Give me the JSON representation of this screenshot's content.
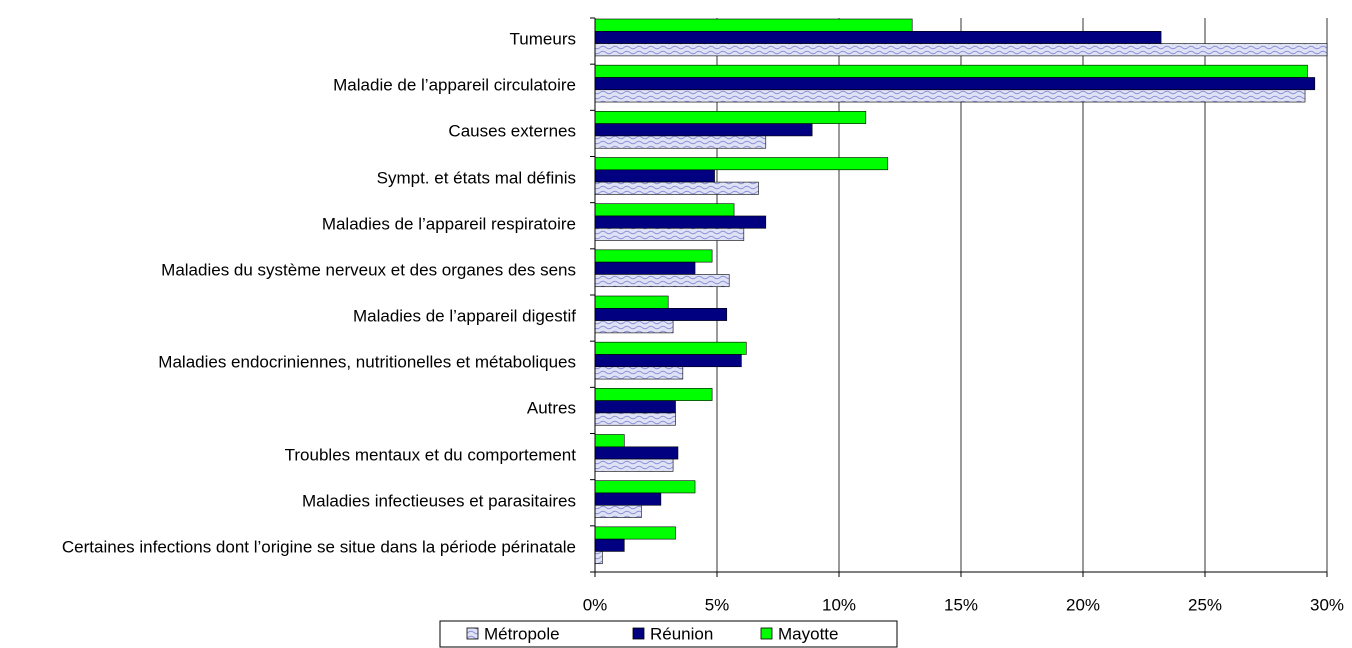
{
  "chart_data": {
    "type": "bar",
    "orientation": "horizontal",
    "categories": [
      "Tumeurs",
      "Maladie de l’appareil circulatoire",
      "Causes externes",
      "Sympt. et états mal définis",
      "Maladies de l’appareil respiratoire",
      "Maladies du système nerveux et des organes des sens",
      "Maladies de l’appareil digestif",
      "Maladies endocriniennes, nutritionelles et métaboliques",
      "Autres",
      "Troubles mentaux et du comportement",
      "Maladies infectieuses et parasitaires",
      "Certaines infections dont l’origine se situe dans la période périnatale"
    ],
    "series": [
      {
        "name": "Métropole",
        "color": "#dfe1f5",
        "pattern": "wave",
        "values": [
          30.0,
          29.1,
          7.0,
          6.7,
          6.1,
          5.5,
          3.2,
          3.6,
          3.3,
          3.2,
          1.9,
          0.3
        ]
      },
      {
        "name": "Réunion",
        "color": "#000080",
        "values": [
          23.2,
          29.5,
          8.9,
          4.9,
          7.0,
          4.1,
          5.4,
          6.0,
          3.3,
          3.4,
          2.7,
          1.2
        ]
      },
      {
        "name": "Mayotte",
        "color": "#00ff00",
        "values": [
          13.0,
          29.2,
          11.1,
          12.0,
          5.7,
          4.8,
          3.0,
          6.2,
          4.8,
          1.2,
          4.1,
          3.3
        ]
      }
    ],
    "xlim": [
      0,
      30
    ],
    "xticks": [
      {
        "value": 0,
        "label": "0%"
      },
      {
        "value": 5,
        "label": "5%"
      },
      {
        "value": 10,
        "label": "10%"
      },
      {
        "value": 15,
        "label": "15%"
      },
      {
        "value": 20,
        "label": "20%"
      },
      {
        "value": 25,
        "label": "25%"
      },
      {
        "value": 30,
        "label": "30%"
      }
    ],
    "grid": true,
    "legend": "bottom"
  }
}
